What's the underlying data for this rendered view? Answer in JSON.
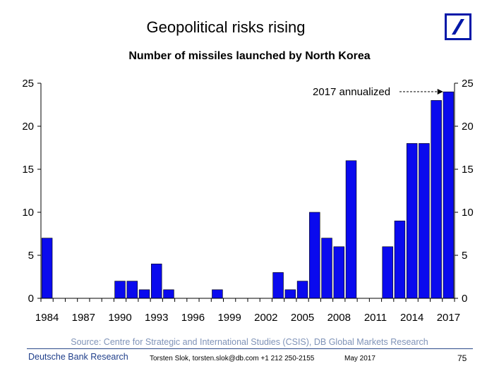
{
  "slide": {
    "title": "Geopolitical risks rising",
    "source": "Source: Centre for Strategic and International Studies (CSIS), DB Global Markets Research",
    "footer": {
      "brand": "Deutsche Bank Research",
      "contact": "Torsten Slok, torsten.slok@db.com  +1 212 250-2155",
      "date": "May 2017",
      "page": "75"
    },
    "logo": {
      "name": "deutsche-bank-logo",
      "color": "#0018a8"
    }
  },
  "chart_data": {
    "type": "bar",
    "title": "Number of missiles launched by North Korea",
    "xlabel": "",
    "ylabel": "",
    "x": [
      1984,
      1985,
      1986,
      1987,
      1988,
      1989,
      1990,
      1991,
      1992,
      1993,
      1994,
      1995,
      1996,
      1997,
      1998,
      1999,
      2000,
      2001,
      2002,
      2003,
      2004,
      2005,
      2006,
      2007,
      2008,
      2009,
      2010,
      2011,
      2012,
      2013,
      2014,
      2015,
      2016,
      2017
    ],
    "values": [
      7,
      0,
      0,
      0,
      0,
      0,
      2,
      2,
      1,
      4,
      1,
      0,
      0,
      0,
      1,
      0,
      0,
      0,
      0,
      3,
      1,
      2,
      10,
      7,
      6,
      16,
      0,
      0,
      6,
      9,
      18,
      18,
      23,
      24
    ],
    "x_tick_labels": [
      "1984",
      "1987",
      "1990",
      "1993",
      "1996",
      "1999",
      "2002",
      "2005",
      "2008",
      "2011",
      "2014",
      "2017"
    ],
    "ylim": [
      0,
      25
    ],
    "y_ticks": [
      0,
      5,
      10,
      15,
      20,
      25
    ],
    "y_tick_labels": [
      "0",
      "5",
      "10",
      "15",
      "20",
      "25"
    ],
    "annotation": {
      "text": "2017 annualized",
      "target_x": 2017
    },
    "bar_color": "#0a0aee",
    "grid": false,
    "legend": "none",
    "dual_y_axis": true
  }
}
